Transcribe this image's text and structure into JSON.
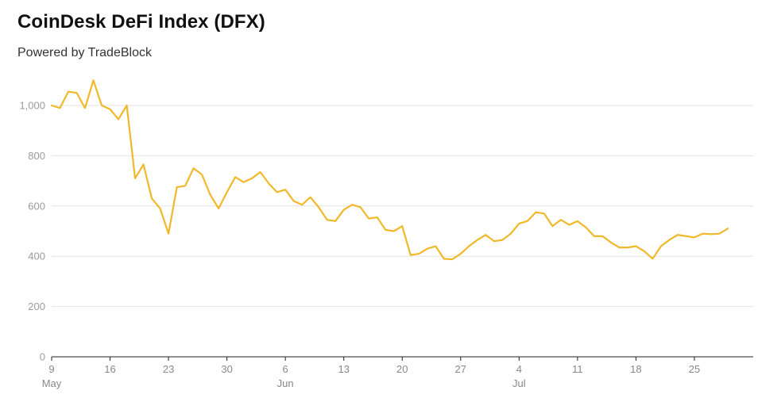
{
  "header": {
    "title": "CoinDesk DeFi Index (DFX)",
    "subtitle": "Powered by TradeBlock"
  },
  "chart_data": {
    "type": "line",
    "title": "CoinDesk DeFi Index (DFX)",
    "subtitle": "Powered by TradeBlock",
    "xlabel": "",
    "ylabel": "",
    "ylim": [
      0,
      1100
    ],
    "grid": true,
    "line_color": "#f0b92b",
    "y_ticks": [
      {
        "value": 0,
        "label": "0"
      },
      {
        "value": 200,
        "label": "200"
      },
      {
        "value": 400,
        "label": "400"
      },
      {
        "value": 600,
        "label": "600"
      },
      {
        "value": 800,
        "label": "800"
      },
      {
        "value": 1000,
        "label": "1,000"
      }
    ],
    "x_ticks": [
      {
        "day": 0,
        "label": "9",
        "month": "May"
      },
      {
        "day": 7,
        "label": "16",
        "month": ""
      },
      {
        "day": 14,
        "label": "23",
        "month": ""
      },
      {
        "day": 21,
        "label": "30",
        "month": ""
      },
      {
        "day": 28,
        "label": "6",
        "month": "Jun"
      },
      {
        "day": 35,
        "label": "13",
        "month": ""
      },
      {
        "day": 42,
        "label": "20",
        "month": ""
      },
      {
        "day": 49,
        "label": "27",
        "month": ""
      },
      {
        "day": 56,
        "label": "4",
        "month": "Jul"
      },
      {
        "day": 63,
        "label": "11",
        "month": ""
      },
      {
        "day": 70,
        "label": "18",
        "month": ""
      },
      {
        "day": 77,
        "label": "25",
        "month": ""
      }
    ],
    "x_range": [
      0,
      83
    ],
    "series": [
      {
        "values": [
          1000,
          990,
          1055,
          1050,
          990,
          1100,
          1000,
          985,
          945,
          1000,
          710,
          765,
          630,
          590,
          490,
          675,
          680,
          750,
          725,
          645,
          590,
          655,
          715,
          695,
          710,
          735,
          690,
          655,
          665,
          620,
          605,
          635,
          595,
          545,
          540,
          585,
          605,
          595,
          550,
          555,
          505,
          500,
          520,
          405,
          410,
          430,
          440,
          390,
          388,
          410,
          440,
          465,
          485,
          460,
          465,
          490,
          530,
          540,
          575,
          570,
          520,
          545,
          525,
          540,
          515,
          480,
          480,
          455,
          435,
          435,
          440,
          420,
          390,
          440,
          465,
          485,
          480,
          475,
          490,
          488,
          490,
          510
        ]
      }
    ]
  }
}
